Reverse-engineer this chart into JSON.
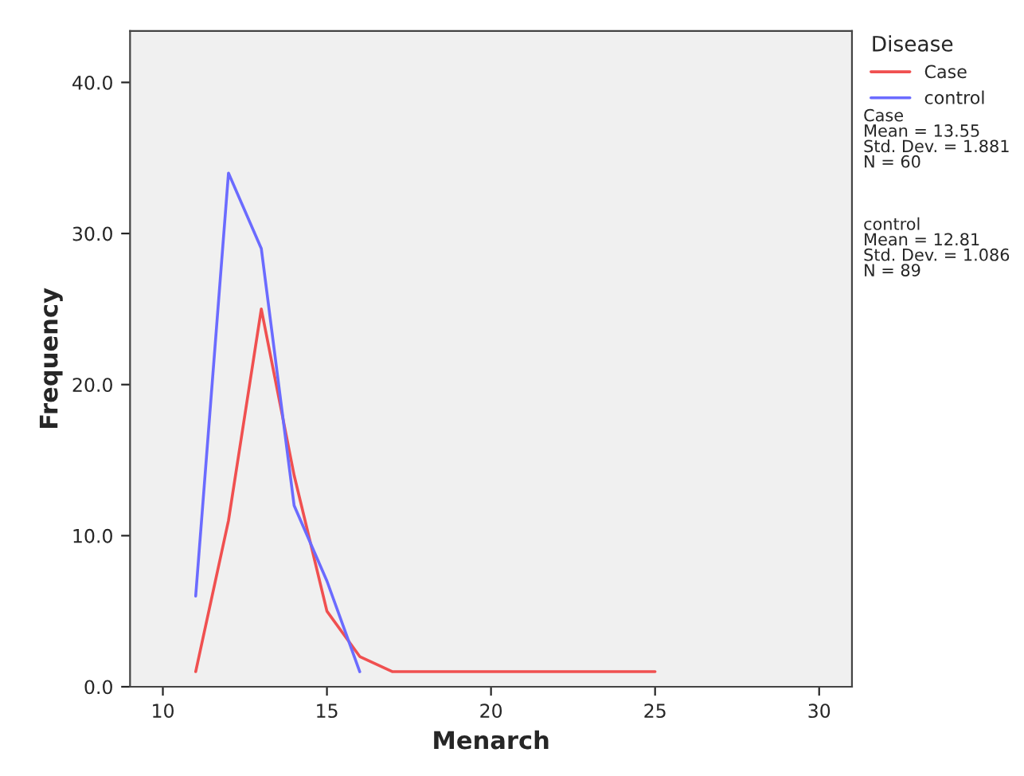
{
  "chart_data": {
    "type": "line",
    "xlabel": "Menarch",
    "ylabel": "Frequency",
    "legend_title": "Disease",
    "legend": "top right",
    "series": [
      {
        "name": "Case",
        "color": "#f05050",
        "x": [
          11,
          12,
          13,
          14,
          15,
          16,
          17,
          25
        ],
        "values": [
          1,
          11,
          25,
          14,
          5,
          2,
          1,
          1
        ]
      },
      {
        "name": "control",
        "color": "#6b6bff",
        "x": [
          11,
          12,
          13,
          14,
          15,
          16
        ],
        "values": [
          6,
          34,
          29,
          12,
          7,
          1
        ]
      }
    ],
    "xlim": [
      9,
      31
    ],
    "xticks": [
      10,
      15,
      20,
      25,
      30
    ],
    "ylim": [
      0,
      43.4
    ],
    "yticks": [
      {
        "value": 0,
        "label": "0.0"
      },
      {
        "value": 10,
        "label": "10.0"
      },
      {
        "value": 20,
        "label": "20.0"
      },
      {
        "value": 30,
        "label": "30.0"
      },
      {
        "value": 40,
        "label": "40.0"
      }
    ],
    "grid": false,
    "annotations": [
      "Case\nMean = 13.55\nStd. Dev. = 1.881\nN = 60",
      "control\nMean = 12.81\nStd. Dev. = 1.086\nN = 89"
    ]
  }
}
